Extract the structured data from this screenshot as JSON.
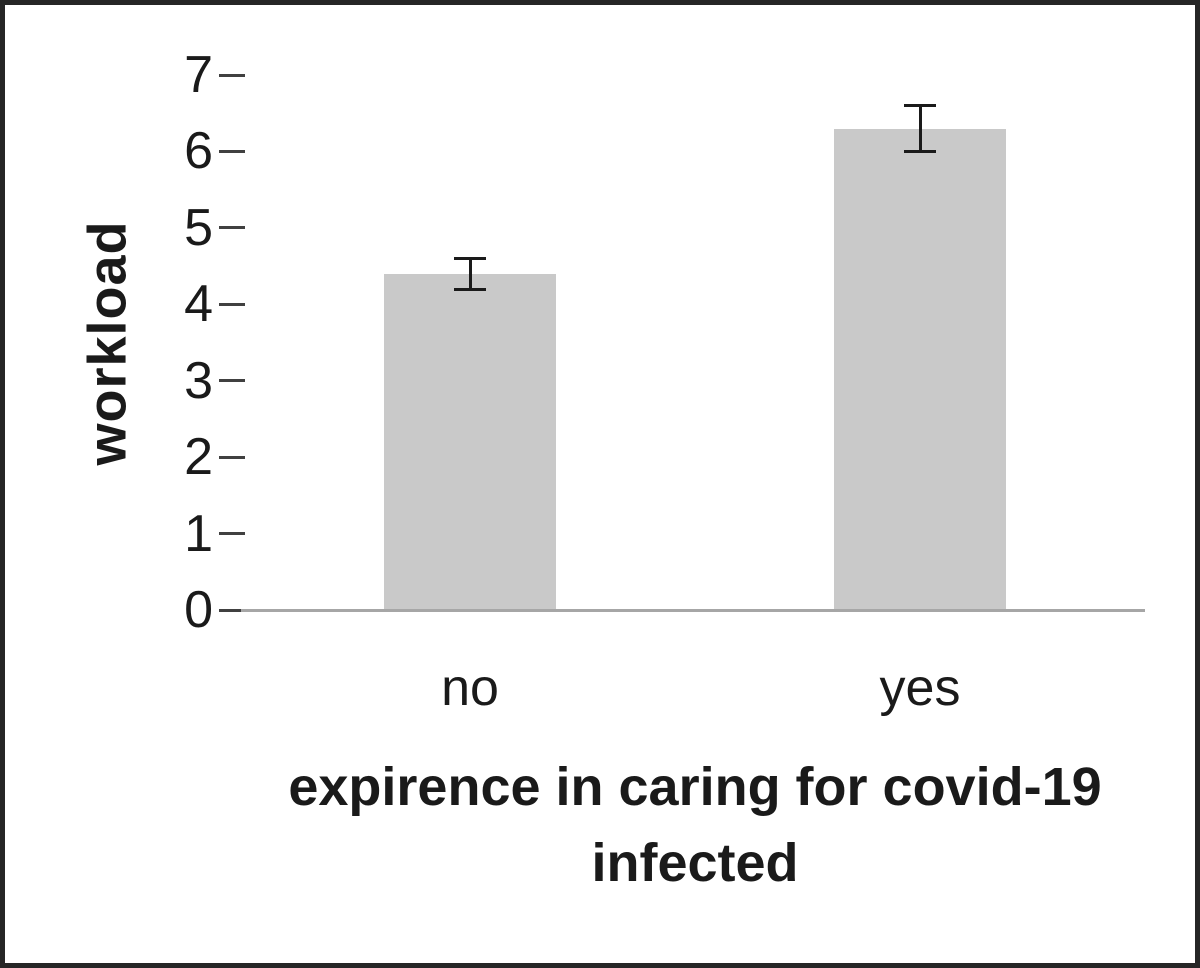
{
  "figure": {
    "background": "#ffffff",
    "border_color": "#262626"
  },
  "chart_data": {
    "type": "bar",
    "title": "",
    "categories": [
      "no",
      "yes"
    ],
    "values": [
      4.4,
      6.3
    ],
    "error_bars": [
      0.2,
      0.3
    ],
    "xlabel": "expirence in caring for covid-19 infected",
    "ylabel": "workload",
    "ylim": [
      0,
      7
    ],
    "yticks": [
      0,
      1,
      2,
      3,
      4,
      5,
      6,
      7
    ],
    "grid": false,
    "legend": false,
    "bar_color": "#c9c9c9",
    "error_bar_color": "#1a1a1a",
    "axis_line_color": "#a6a6a6",
    "tick_mark_color": "#404040",
    "text_color": "#1a1a1a"
  }
}
